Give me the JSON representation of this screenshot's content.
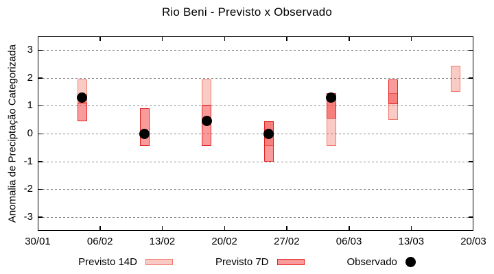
{
  "title": "Rio Beni - Previsto x Observado",
  "chart_data": {
    "type": "bar",
    "subtype": "weekly forecast range bars with observed scatter points",
    "title": "Rio Beni - Previsto x Observado",
    "xlabel": "",
    "ylabel": "Anomalia de Preciptação Categorizada",
    "ylim": [
      -3.5,
      3.5
    ],
    "yticks": [
      -3,
      -2,
      -1,
      0,
      1,
      2,
      3
    ],
    "xticks": [
      "30/01",
      "06/02",
      "13/02",
      "20/02",
      "27/02",
      "06/03",
      "13/03",
      "20/03"
    ],
    "xtick_interval_days": 7,
    "grid": "horizontal dashed gray lines at integer y values",
    "legend_position": "bottom-center",
    "categories": [
      "04/02",
      "11/02",
      "18/02",
      "25/02",
      "04/03",
      "11/03",
      "18/03"
    ],
    "category_day_offsets": [
      5,
      12,
      19,
      26,
      33,
      40,
      47
    ],
    "series": [
      {
        "name": "Previsto 14D",
        "type": "range",
        "fill": "rgba(239,83,63,0.30)",
        "border": "rgba(235,70,50,0.62)",
        "ranges": [
          [
            1.1,
            1.95
          ],
          null,
          [
            1.0,
            1.95
          ],
          [
            -0.45,
            0.45
          ],
          [
            -0.45,
            1.45
          ],
          [
            0.5,
            1.45
          ],
          [
            1.5,
            2.45
          ]
        ]
      },
      {
        "name": "Previsto 7D",
        "type": "range",
        "fill": "rgba(244,42,42,0.47)",
        "border": "#e32424",
        "ranges": [
          [
            0.45,
            1.1
          ],
          [
            -0.45,
            0.9
          ],
          [
            -0.45,
            1.0
          ],
          [
            -1.0,
            0.45
          ],
          [
            0.55,
            1.45
          ],
          [
            1.05,
            1.95
          ],
          null
        ]
      },
      {
        "name": "Observado",
        "type": "scatter",
        "color": "#000000",
        "values": [
          1.3,
          0.0,
          0.45,
          0.0,
          1.3,
          null,
          null
        ]
      }
    ],
    "frame_color": "#000000",
    "grid_color": "#8a8a8a"
  }
}
